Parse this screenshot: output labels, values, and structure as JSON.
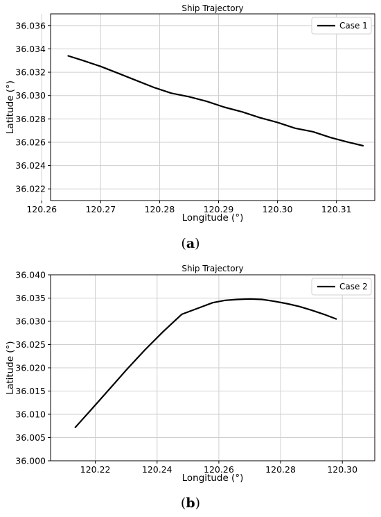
{
  "figures": [
    {
      "caption_letter": "a"
    },
    {
      "caption_letter": "b"
    }
  ],
  "chart_data": [
    {
      "type": "line",
      "title": "Ship Trajectory",
      "xlabel": "Longitude (°)",
      "ylabel": "Latitude (°)",
      "xlim": [
        120.2615,
        120.3165
      ],
      "ylim": [
        36.021,
        36.037
      ],
      "xticks": [
        120.26,
        120.27,
        120.28,
        120.29,
        120.3,
        120.31
      ],
      "xtick_labels": [
        "120.26",
        "120.27",
        "120.28",
        "120.29",
        "120.30",
        "120.31"
      ],
      "yticks": [
        36.022,
        36.024,
        36.026,
        36.028,
        36.03,
        36.032,
        36.034,
        36.036
      ],
      "ytick_labels": [
        "36.022",
        "36.024",
        "36.026",
        "36.028",
        "36.030",
        "36.032",
        "36.034",
        "36.036"
      ],
      "grid": true,
      "legend_position": "top-right",
      "series": [
        {
          "name": "Case 1",
          "color": "#000000",
          "x": [
            120.2645,
            120.267,
            120.27,
            120.273,
            120.276,
            120.279,
            120.282,
            120.285,
            120.288,
            120.291,
            120.294,
            120.297,
            120.3,
            120.303,
            120.306,
            120.309,
            120.312,
            120.3145
          ],
          "y": [
            36.0334,
            36.033,
            36.0325,
            36.0319,
            36.0313,
            36.0307,
            36.0302,
            36.0299,
            36.0295,
            36.029,
            36.0286,
            36.0281,
            36.0277,
            36.0272,
            36.0269,
            36.0264,
            36.026,
            36.0257
          ]
        }
      ]
    },
    {
      "type": "line",
      "title": "Ship Trajectory",
      "xlabel": "Longitude (°)",
      "ylabel": "Latitude (°)",
      "xlim": [
        120.2055,
        120.3105
      ],
      "ylim": [
        36.0,
        36.04
      ],
      "xticks": [
        120.22,
        120.24,
        120.26,
        120.28,
        120.3
      ],
      "xtick_labels": [
        "120.22",
        "120.24",
        "120.26",
        "120.28",
        "120.30"
      ],
      "yticks": [
        36.0,
        36.005,
        36.01,
        36.015,
        36.02,
        36.025,
        36.03,
        36.035,
        36.04
      ],
      "ytick_labels": [
        "36.000",
        "36.005",
        "36.010",
        "36.015",
        "36.020",
        "36.025",
        "36.030",
        "36.035",
        "36.040"
      ],
      "grid": true,
      "legend_position": "top-right",
      "series": [
        {
          "name": "Case 2",
          "color": "#000000",
          "x": [
            120.2135,
            120.218,
            120.224,
            120.23,
            120.236,
            120.242,
            120.248,
            120.254,
            120.258,
            120.262,
            120.266,
            120.27,
            120.274,
            120.278,
            120.282,
            120.286,
            120.29,
            120.294,
            120.298
          ],
          "y": [
            36.0072,
            36.0105,
            36.015,
            36.0195,
            36.0238,
            36.0278,
            36.0315,
            36.033,
            36.034,
            36.0345,
            36.0347,
            36.0348,
            36.0347,
            36.0343,
            36.0338,
            36.0332,
            36.0324,
            36.0315,
            36.0305
          ]
        }
      ]
    }
  ]
}
